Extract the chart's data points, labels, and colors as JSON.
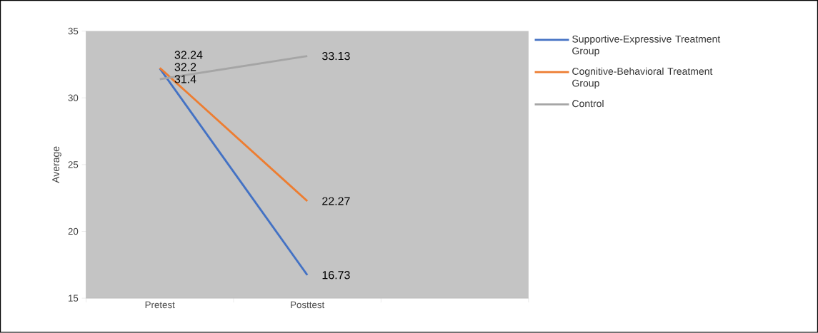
{
  "chart_data": {
    "type": "line",
    "ylabel": "Average",
    "categories": [
      "Pretest",
      "Posttest",
      null
    ],
    "series": [
      {
        "name": "Supportive-Expressive Treatment Group",
        "color": "#4472c4",
        "values": [
          32.2,
          16.73,
          null
        ],
        "value_labels": [
          "32.2",
          "16.73",
          null
        ]
      },
      {
        "name": "Cognitive-Behavioral Treatment Group",
        "color": "#ed7d31",
        "values": [
          32.24,
          22.27,
          null
        ],
        "value_labels": [
          "32.24",
          "22.27",
          null
        ]
      },
      {
        "name": "Control",
        "color": "#a5a5a5",
        "values": [
          31.4,
          33.13,
          null
        ],
        "value_labels": [
          "31.4",
          "33.13",
          null
        ]
      }
    ],
    "ylim": [
      15,
      35
    ],
    "yticks": [
      15,
      20,
      25,
      30,
      35
    ],
    "grid": false,
    "legend": "right",
    "marker": "none",
    "line_style": "solid"
  }
}
